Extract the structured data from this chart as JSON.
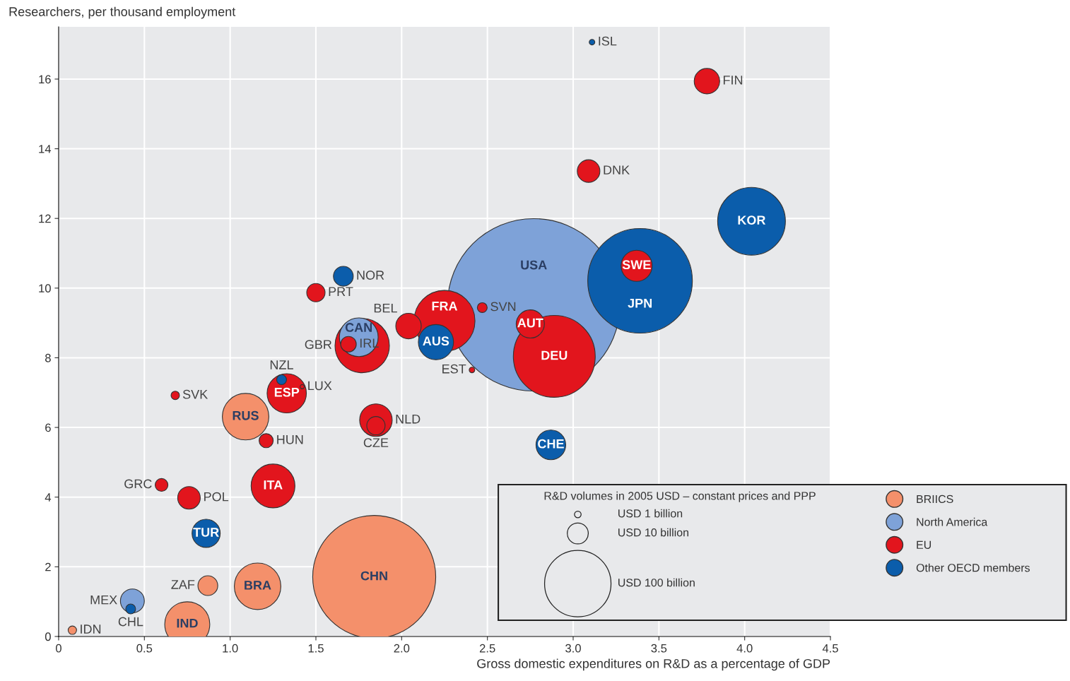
{
  "chart_data": {
    "type": "bubble",
    "xlabel": "Gross domestic expenditures on R&D as a percentage of GDP",
    "ylabel": "Researchers, per thousand employment",
    "legend_title": "R&D volumes in 2005 USD – constant prices and PPP",
    "xlim": [
      0,
      4.5
    ],
    "ylim": [
      0,
      17.5
    ],
    "xticks": [
      0,
      0.5,
      {
        "value": 1,
        "label": "1.0"
      },
      1.5,
      {
        "value": 2,
        "label": "2.0"
      },
      2.5,
      {
        "value": 3,
        "label": "3.0"
      },
      3.5,
      {
        "value": 4,
        "label": "4.0"
      },
      4.5
    ],
    "yticks": [
      0,
      2,
      4,
      6,
      8,
      10,
      12,
      14,
      16
    ],
    "grid": true,
    "legend": "bottom right",
    "size_legend": [
      {
        "value": 1,
        "label": "USD 1 billion"
      },
      {
        "value": 10,
        "label": "USD 10 billion"
      },
      {
        "value": 100,
        "label": "USD 100 billion"
      }
    ],
    "series": [
      {
        "name": "BRIICS",
        "color": "#f4906b",
        "x": [
          1.84,
          1.16,
          1.09,
          0.75,
          0.87,
          0.08
        ],
        "values": [
          1.71,
          1.44,
          6.31,
          0.35,
          1.46,
          0.18
        ],
        "sizes": [
          343,
          49,
          49,
          46,
          8.9,
          1.6
        ]
      },
      {
        "name": "North America",
        "color": "#7ea2d8",
        "x": [
          2.77,
          1.75,
          0.43
        ],
        "values": [
          9.52,
          8.59,
          1.02
        ],
        "sizes": [
          674,
          34,
          13
        ]
      },
      {
        "name": "EU",
        "color": "#e2151d",
        "x": [
          3.78,
          3.09,
          3.37,
          2.25,
          2.04,
          2.75,
          2.89,
          2.47,
          2.41,
          1.77,
          1.69,
          1.5,
          1.42,
          1.33,
          0.68,
          1.85,
          1.85,
          1.21,
          0.6,
          0.76,
          1.25
        ],
        "values": [
          15.94,
          13.36,
          10.64,
          9.06,
          8.91,
          8.97,
          8.04,
          9.44,
          7.65,
          8.35,
          8.39,
          9.87,
          7.17,
          6.98,
          6.92,
          6.21,
          6.05,
          5.62,
          4.35,
          3.98,
          4.32
        ],
        "sizes": [
          14.7,
          11.6,
          21.9,
          84,
          14.7,
          18,
          152,
          2.2,
          0.7,
          67,
          5.5,
          7.6,
          0.4,
          35,
          1.6,
          24,
          7.6,
          4.5,
          3.7,
          11.6,
          43.5
        ]
      },
      {
        "name": "Other OECD members",
        "color": "#0b5dab",
        "x": [
          3.11,
          4.04,
          3.39,
          2.2,
          1.66,
          1.3,
          2.87,
          0.86,
          0.42
        ],
        "values": [
          17.06,
          11.92,
          10.21,
          8.45,
          10.34,
          7.37,
          5.5,
          2.96,
          0.79
        ],
        "sizes": [
          0.7,
          104,
          248,
          28,
          8.9,
          2.2,
          20,
          18,
          2.2
        ]
      }
    ],
    "annotations": [
      {
        "text": "CHN",
        "x": 1.84,
        "y": 1.71
      },
      {
        "text": "BRA",
        "x": 1.16,
        "y": 1.44
      },
      {
        "text": "RUS",
        "x": 1.09,
        "y": 6.31
      },
      {
        "text": "IND",
        "x": 0.75,
        "y": 0.35
      },
      {
        "text": "ZAF",
        "x": 0.87,
        "y": 1.46
      },
      {
        "text": "IDN",
        "x": 0.08,
        "y": 0.18
      },
      {
        "text": "USA",
        "x": 2.77,
        "y": 9.52
      },
      {
        "text": "CAN",
        "x": 1.75,
        "y": 8.59
      },
      {
        "text": "MEX",
        "x": 0.43,
        "y": 1.02
      },
      {
        "text": "FIN",
        "x": 3.78,
        "y": 15.94
      },
      {
        "text": "DNK",
        "x": 3.09,
        "y": 13.36
      },
      {
        "text": "SWE",
        "x": 3.37,
        "y": 10.64
      },
      {
        "text": "FRA",
        "x": 2.25,
        "y": 9.06
      },
      {
        "text": "BEL",
        "x": 2.04,
        "y": 8.91
      },
      {
        "text": "AUT",
        "x": 2.75,
        "y": 8.97
      },
      {
        "text": "DEU",
        "x": 2.89,
        "y": 8.04
      },
      {
        "text": "SVN",
        "x": 2.47,
        "y": 9.44
      },
      {
        "text": "EST",
        "x": 2.41,
        "y": 7.65
      },
      {
        "text": "GBR",
        "x": 1.77,
        "y": 8.35
      },
      {
        "text": "IRL",
        "x": 1.69,
        "y": 8.39
      },
      {
        "text": "PRT",
        "x": 1.5,
        "y": 9.87
      },
      {
        "text": "LUX",
        "x": 1.42,
        "y": 7.17
      },
      {
        "text": "ESP",
        "x": 1.33,
        "y": 6.98
      },
      {
        "text": "SVK",
        "x": 0.68,
        "y": 6.92
      },
      {
        "text": "NLD",
        "x": 1.85,
        "y": 6.21
      },
      {
        "text": "CZE",
        "x": 1.85,
        "y": 6.05
      },
      {
        "text": "HUN",
        "x": 1.21,
        "y": 5.62
      },
      {
        "text": "GRC",
        "x": 0.6,
        "y": 4.35
      },
      {
        "text": "POL",
        "x": 0.76,
        "y": 3.98
      },
      {
        "text": "ITA",
        "x": 1.25,
        "y": 4.32
      },
      {
        "text": "ISL",
        "x": 3.11,
        "y": 17.06
      },
      {
        "text": "KOR",
        "x": 4.04,
        "y": 11.92
      },
      {
        "text": "JPN",
        "x": 3.39,
        "y": 10.21
      },
      {
        "text": "AUS",
        "x": 2.2,
        "y": 8.45
      },
      {
        "text": "NOR",
        "x": 1.66,
        "y": 10.34
      },
      {
        "text": "NZL",
        "x": 1.3,
        "y": 7.37
      },
      {
        "text": "CHE",
        "x": 2.87,
        "y": 5.5
      },
      {
        "text": "TUR",
        "x": 0.86,
        "y": 2.96
      },
      {
        "text": "CHL",
        "x": 0.42,
        "y": 0.79
      }
    ]
  }
}
